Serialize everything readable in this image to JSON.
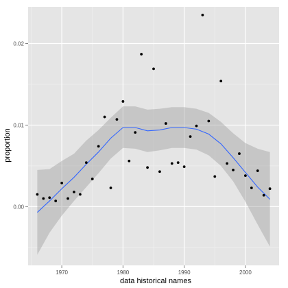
{
  "chart_data": {
    "type": "scatter",
    "title": "",
    "xlabel": "data historical names",
    "ylabel": "proportion",
    "xlim": [
      1964.5,
      2005.5
    ],
    "ylim": [
      -0.0072,
      0.0245
    ],
    "x_ticks": [
      1970,
      1980,
      1990,
      2000
    ],
    "x_tick_labels": [
      "1970",
      "1980",
      "1990",
      "2000"
    ],
    "y_ticks": [
      0.0,
      0.01,
      0.02
    ],
    "y_tick_labels": [
      "0.00",
      "0.01",
      "0.02"
    ],
    "grid": true,
    "legend": "none",
    "colors": {
      "panel": "#e5e5e5",
      "grid_major": "#ffffff",
      "grid_minor": "#f2f2f2",
      "points": "#000000",
      "smooth_line": "#3366ff",
      "ribbon": "#999999"
    },
    "series": [
      {
        "type": "scatter",
        "x": [
          1966,
          1967,
          1968,
          1969,
          1970,
          1971,
          1972,
          1973,
          1974,
          1975,
          1976,
          1977,
          1978,
          1979,
          1980,
          1981,
          1982,
          1983,
          1984,
          1985,
          1986,
          1987,
          1988,
          1989,
          1990,
          1991,
          1992,
          1993,
          1994,
          1995,
          1996,
          1997,
          1998,
          1999,
          2000,
          2001,
          2002,
          2003,
          2004
        ],
        "y": [
          0.0015,
          0.001,
          0.0011,
          0.0007,
          0.0029,
          0.001,
          0.0018,
          0.0015,
          0.0054,
          0.0034,
          0.0074,
          0.011,
          0.0023,
          0.0107,
          0.0129,
          0.0056,
          0.0091,
          0.0187,
          0.0048,
          0.0169,
          0.0043,
          0.0102,
          0.0053,
          0.0054,
          0.0049,
          0.0086,
          0.0099,
          0.0235,
          0.0105,
          0.0037,
          0.0154,
          0.0053,
          0.0045,
          0.0065,
          0.0038,
          0.0023,
          0.0044,
          0.0014,
          0.0022
        ]
      },
      {
        "type": "smooth",
        "x": [
          1966,
          1968,
          1970,
          1972,
          1974,
          1976,
          1978,
          1980,
          1982,
          1984,
          1986,
          1988,
          1990,
          1992,
          1994,
          1996,
          1998,
          2000,
          2002,
          2004
        ],
        "y": [
          -0.0007,
          0.0007,
          0.0022,
          0.0036,
          0.0052,
          0.0067,
          0.0084,
          0.0097,
          0.0097,
          0.0093,
          0.0094,
          0.0097,
          0.0097,
          0.0095,
          0.0089,
          0.0077,
          0.006,
          0.0042,
          0.0024,
          0.0009
        ],
        "lower": [
          -0.0059,
          -0.0032,
          -0.0011,
          0.0007,
          0.0024,
          0.0041,
          0.0059,
          0.0072,
          0.0071,
          0.0067,
          0.0069,
          0.0072,
          0.0072,
          0.007,
          0.0063,
          0.005,
          0.0031,
          0.0006,
          -0.0022,
          -0.0049
        ],
        "upper": [
          0.0045,
          0.0046,
          0.0056,
          0.0065,
          0.0081,
          0.0094,
          0.0109,
          0.0123,
          0.0123,
          0.0119,
          0.012,
          0.0122,
          0.0122,
          0.012,
          0.0115,
          0.0104,
          0.009,
          0.0078,
          0.0071,
          0.0067
        ]
      }
    ]
  }
}
